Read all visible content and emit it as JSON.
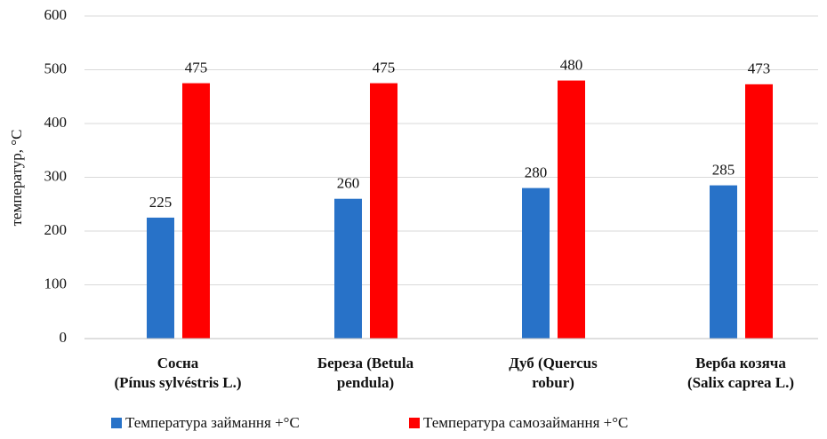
{
  "chart_data": {
    "type": "bar",
    "y_label": "температур, °C",
    "categories": [
      "Сосна\n(Pínus sylvéstris L.)",
      "Береза (Betula\npendula)",
      "Дуб (Quercus\nrobur)",
      "Верба козяча\n(Salix caprea L.)"
    ],
    "series": [
      {
        "name": "Температура займання +°C",
        "color": "#2872c8",
        "values": [
          225,
          260,
          280,
          285
        ]
      },
      {
        "name": "Температура самозаймання +°C",
        "color": "#ff0000",
        "values": [
          475,
          475,
          480,
          473
        ]
      }
    ],
    "ylim": [
      0,
      600
    ],
    "yticks": [
      0,
      100,
      200,
      300,
      400,
      500,
      600
    ],
    "grid": true,
    "legend": "bottom"
  }
}
